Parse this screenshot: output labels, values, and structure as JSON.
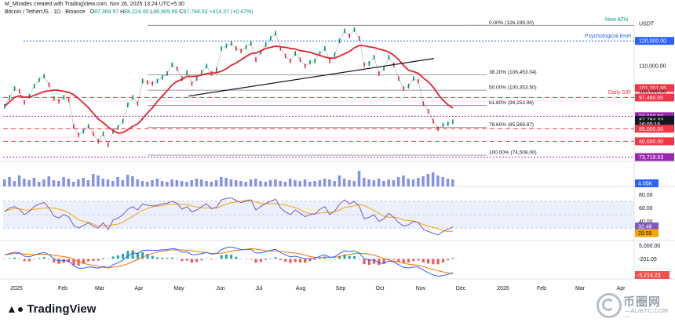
{
  "header": {
    "line1": "M_Mtrades created with TradingView.com, Nov 26, 2025 13:24 UTC+5:30",
    "symbol": "Bitcoin / TetherUS · 1D · Binance",
    "o_label": "O",
    "o_val": "87,369.97",
    "h_label": "H",
    "h_val": "88,224.00",
    "l_label": "L",
    "l_val": "86,909.99",
    "c_label": "C",
    "c_val": "87,784.33",
    "change": "+414.37 (+0.47%)"
  },
  "logo": {
    "text": "TradingView"
  },
  "watermark": {
    "title": "币圈网",
    "url": "—ALIBTC.COM—"
  },
  "chart_data": {
    "type": "line",
    "currency_label": "USDT",
    "x_labels": [
      "2025",
      "Feb",
      "Mar",
      "Apr",
      "May",
      "Jun",
      "Jul",
      "Aug",
      "Sep",
      "Oct",
      "Nov",
      "Dec",
      "2026",
      "Feb",
      "Mar",
      "Apr"
    ],
    "price": {
      "yticks": [
        90000,
        100000,
        110000,
        120000
      ],
      "ytick_labels": [
        "90,000.00",
        "100,000.00",
        "110,000.00",
        "120,000.00"
      ],
      "close_series_approx": [
        94000,
        97500,
        101000,
        100000,
        95500,
        98000,
        102000,
        104500,
        106000,
        102500,
        97000,
        96000,
        97500,
        96500,
        86000,
        82500,
        84000,
        86000,
        83000,
        80000,
        83000,
        78500,
        84000,
        85500,
        88000,
        94500,
        97500,
        95000,
        104000,
        103500,
        103000,
        104000,
        105500,
        107000,
        110500,
        109000,
        105000,
        107500,
        103000,
        105000,
        107500,
        110000,
        107000,
        108500,
        117000,
        118000,
        119000,
        117000,
        116000,
        117500,
        119000,
        112500,
        115500,
        118500,
        121000,
        123000,
        117000,
        114000,
        112000,
        115000,
        112500,
        110000,
        111500,
        112000,
        115000,
        117000,
        112000,
        114500,
        120000,
        124000,
        122000,
        124500,
        121000,
        110500,
        111000,
        113500,
        107000,
        109000,
        113500,
        110500,
        105000,
        101000,
        102000,
        105000,
        104000,
        95000,
        92000,
        88000,
        85000,
        86500,
        87000,
        87784
      ]
    },
    "horizontal_levels": [
      {
        "label": "New ATH",
        "value": 126199
      },
      {
        "label": "Psychological level",
        "value": 120000
      },
      {
        "label": "Daily S/R",
        "value": 97460
      },
      {
        "value": 90000
      },
      {
        "value": 85000
      },
      {
        "value": 80000
      },
      {
        "value": 73719.53
      }
    ],
    "fibonacci": [
      {
        "ratio": "0.00%",
        "price": 126199.0,
        "text": "0.00% (126,199.00)"
      },
      {
        "ratio": "38.20%",
        "price": 106453.04,
        "text": "38.20% (106,453.04)"
      },
      {
        "ratio": "50.00%",
        "price": 100353.5,
        "text": "50.00% (100,353.50)"
      },
      {
        "ratio": "61.80%",
        "price": 94253.96,
        "text": "61.80% (94,253.96)"
      },
      {
        "ratio": "78.60%",
        "price": 85569.87,
        "text": "78.60% (85,569.87)"
      },
      {
        "ratio": "100.00%",
        "price": 74508.0,
        "text": "100.00% (74,508.00)"
      }
    ],
    "price_labels": [
      {
        "text": "USDT",
        "color": "#ffffff",
        "text_color": "#131722"
      },
      {
        "text": "New ATH",
        "color": "#ffffff",
        "text_color": "#089981"
      },
      {
        "text": "Psychological level",
        "color": "#ffffff",
        "text_color": "#2962ff"
      },
      {
        "text": "120,000.00",
        "color": "#2962ff",
        "text_color": "#ffffff"
      },
      {
        "text": "110,000.00",
        "color": "#ffffff",
        "text_color": "#131722"
      },
      {
        "text": "101,201.95",
        "color": "#f23645",
        "text_color": "#ffffff"
      },
      {
        "text": "Daily S/R",
        "color": "#ffffff",
        "text_color": "#f23645"
      },
      {
        "text": "97,460.00",
        "color": "#f23645",
        "text_color": "#ffffff"
      },
      {
        "text": "90,000.00",
        "color": "#9c27b0",
        "text_color": "#ffffff"
      },
      {
        "text": "87,784.33",
        "color": "#131722",
        "text_color": "#ffffff"
      },
      {
        "text": "16:05:16",
        "color": "#131722",
        "text_color": "#ffffff"
      },
      {
        "text": "85,000.00",
        "color": "#f23645",
        "text_color": "#ffffff"
      },
      {
        "text": "80,000.00",
        "color": "#f23645",
        "text_color": "#ffffff"
      },
      {
        "text": "73,719.53",
        "color": "#9c27b0",
        "text_color": "#ffffff"
      }
    ],
    "moving_average": {
      "label": "",
      "color": "#e0222f",
      "current": 101201.95
    },
    "trendline": {
      "color": "#131722",
      "from_price": 98000,
      "to_price": 113000
    },
    "volume": {
      "value_label": "4.05K",
      "color": "#5b6ee1",
      "bars_approx": [
        9,
        12,
        7,
        14,
        10,
        8,
        11,
        6,
        9,
        13,
        8,
        7,
        12,
        10,
        6,
        9,
        11,
        8,
        16,
        14,
        10,
        9,
        7,
        12,
        8,
        15,
        13,
        9,
        7,
        6,
        8,
        10,
        7,
        6,
        9,
        8,
        7,
        6,
        8,
        10,
        9,
        7,
        6,
        8,
        12,
        11,
        9,
        8,
        7,
        6,
        9,
        10,
        7,
        6,
        8,
        9,
        7,
        6,
        10,
        8,
        7,
        9,
        6,
        7,
        8,
        10,
        9,
        7,
        14,
        10,
        8,
        7,
        20,
        11,
        9,
        8,
        10,
        7,
        9,
        8,
        12,
        14,
        10,
        9,
        11,
        13,
        16,
        18,
        14,
        12,
        10,
        9
      ]
    },
    "rsi": {
      "yticks": [
        40,
        60,
        80
      ],
      "ytick_labels": [
        "40.00",
        "60.00",
        "80.00"
      ],
      "value_labels": [
        "32.46",
        "29.55"
      ],
      "colors": {
        "rsi": "#7e57c2",
        "ma": "#f7a600",
        "band": "#e3eafb"
      },
      "series_approx": [
        55,
        60,
        62,
        58,
        50,
        55,
        62,
        66,
        68,
        60,
        48,
        45,
        50,
        47,
        34,
        30,
        34,
        38,
        33,
        30,
        38,
        28,
        42,
        45,
        50,
        58,
        62,
        57,
        66,
        64,
        63,
        64,
        66,
        67,
        70,
        67,
        58,
        62,
        54,
        57,
        62,
        66,
        59,
        61,
        72,
        74,
        75,
        71,
        68,
        70,
        72,
        57,
        62,
        67,
        70,
        73,
        60,
        54,
        50,
        57,
        52,
        47,
        50,
        51,
        58,
        62,
        50,
        55,
        66,
        72,
        66,
        70,
        62,
        44,
        46,
        50,
        40,
        44,
        52,
        46,
        38,
        33,
        35,
        40,
        38,
        28,
        25,
        22,
        20,
        25,
        28,
        32
      ]
    },
    "macd": {
      "yticks": [
        5000
      ],
      "ytick_labels": [
        "5,000.00"
      ],
      "value_labels": [
        "-201.05",
        "-5,214.23"
      ],
      "colors": {
        "macd": "#2962ff",
        "signal": "#ff6d00",
        "hist_pos": "#26a69a",
        "hist_neg": "#ef5350"
      },
      "series_approx": [
        1500,
        2000,
        2500,
        2200,
        1000,
        800,
        1400,
        2000,
        2400,
        1600,
        0,
        -800,
        -600,
        -800,
        -2500,
        -3500,
        -3500,
        -3000,
        -3200,
        -3500,
        -2800,
        -3400,
        -2200,
        -1500,
        -500,
        1200,
        2200,
        2000,
        3200,
        3300,
        3200,
        3200,
        3400,
        3500,
        3900,
        3600,
        2500,
        2600,
        1600,
        1600,
        2000,
        2400,
        1800,
        2000,
        3500,
        4200,
        4500,
        4000,
        3500,
        3500,
        3600,
        2200,
        2200,
        2700,
        3200,
        3600,
        2400,
        1500,
        800,
        1000,
        500,
        0,
        100,
        200,
        1000,
        1500,
        600,
        800,
        2000,
        3000,
        2700,
        3000,
        2200,
        0,
        -500,
        -400,
        -1500,
        -1700,
        -800,
        -1200,
        -2200,
        -3200,
        -3400,
        -3000,
        -3000,
        -4200,
        -5200,
        -6000,
        -6500,
        -6200,
        -5800,
        -5214
      ]
    }
  }
}
